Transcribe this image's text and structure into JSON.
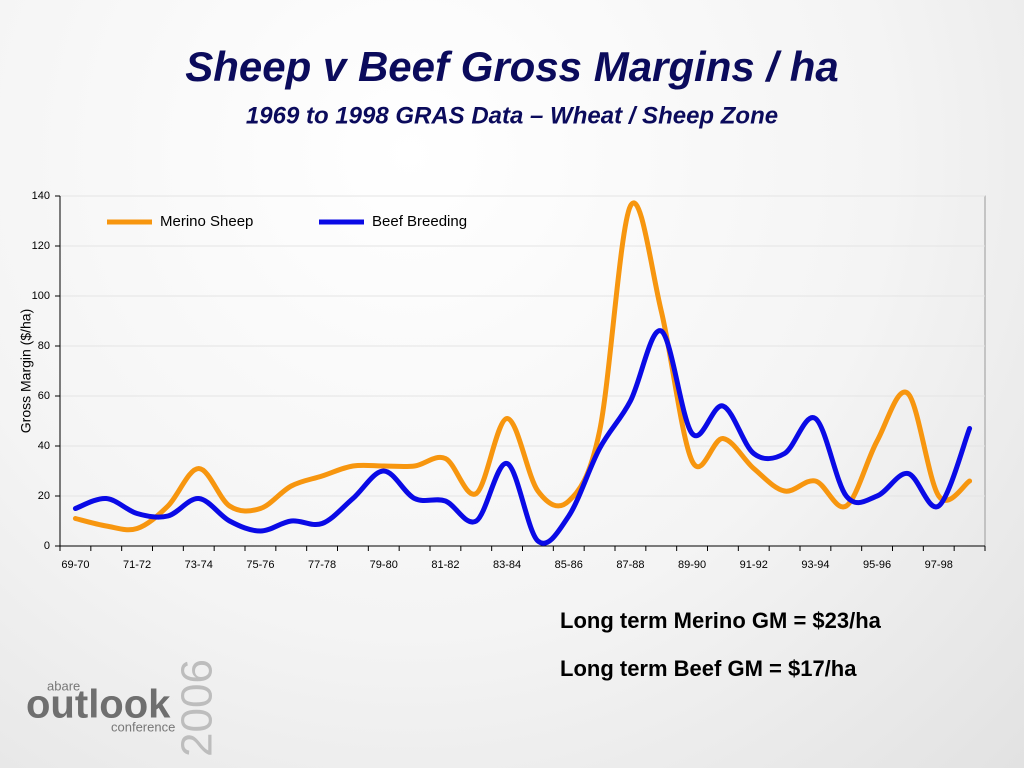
{
  "chart_data": {
    "type": "line",
    "title": "Sheep v Beef Gross Margins / ha",
    "subtitle": "1969 to 1998 GRAS Data – Wheat / Sheep Zone",
    "y_label": "Gross Margin ($/ha)",
    "categories": [
      "69-70",
      null,
      "71-72",
      null,
      "73-74",
      null,
      "75-76",
      null,
      "77-78",
      null,
      "79-80",
      null,
      "81-82",
      null,
      "83-84",
      null,
      "85-86",
      null,
      "87-88",
      null,
      "89-90",
      null,
      "91-92",
      null,
      "93-94",
      null,
      "95-96",
      null,
      "97-98",
      null
    ],
    "series": [
      {
        "name": "Merino Sheep",
        "color": "#f7960f",
        "values": [
          11,
          8,
          7,
          16,
          31,
          16,
          15,
          24,
          28,
          32,
          32,
          32,
          35,
          21,
          51,
          22,
          18,
          46,
          136,
          94,
          34,
          43,
          31,
          22,
          26,
          16,
          42,
          61,
          20,
          26
        ]
      },
      {
        "name": "Beef Breeding",
        "color": "#0a0ae6",
        "values": [
          15,
          19,
          13,
          12,
          19,
          10,
          6,
          10,
          9,
          19,
          30,
          19,
          18,
          10,
          33,
          2,
          12,
          39,
          58,
          86,
          45,
          56,
          37,
          37,
          51,
          20,
          20,
          29,
          16,
          47
        ]
      }
    ],
    "ylim": [
      0,
      140
    ],
    "yticks": [
      0,
      20,
      40,
      60,
      80,
      100,
      120,
      140
    ],
    "grid": true,
    "legend": "top",
    "annotations": [
      "Long term Merino GM = $23/ha",
      "Long term Beef GM = $17/ha"
    ]
  },
  "logo": {
    "org": "abare",
    "name": "outlook",
    "event": "conference",
    "year": "2006"
  }
}
